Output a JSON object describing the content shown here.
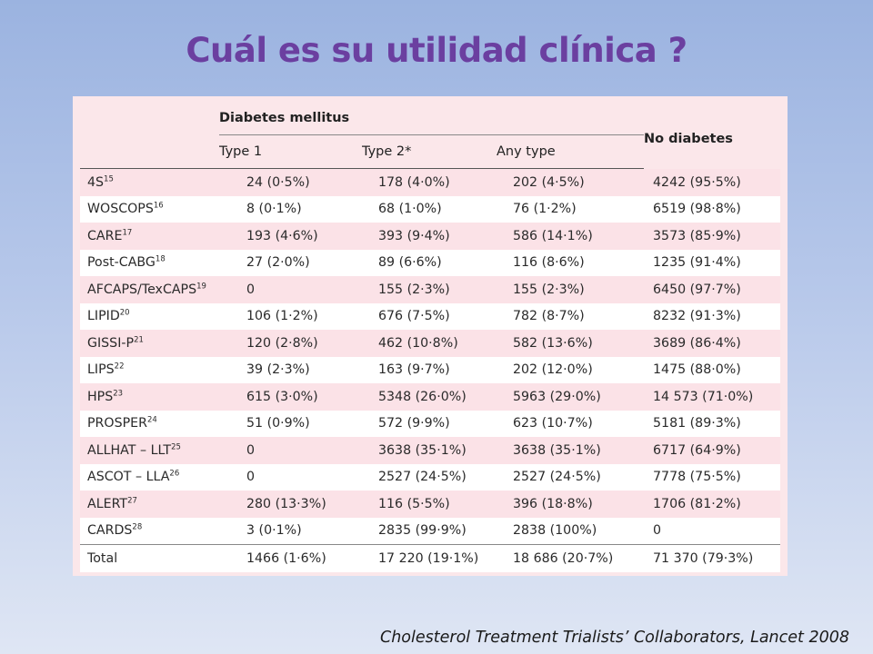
{
  "title": "Cuál es su utilidad clínica ?",
  "citation": "Cholesterol Treatment Trialists’ Collaborators, Lancet 2008",
  "table": {
    "group_header": "Diabetes mellitus",
    "no_diabetes_header": "No diabetes",
    "subheaders": [
      "Type 1",
      "Type 2*",
      "Any type"
    ],
    "rows": [
      {
        "study": "4S",
        "ref": "15",
        "type1": "24 (0·5%)",
        "type2": "178 (4·0%)",
        "any": "202 (4·5%)",
        "nodiab": "4242 (95·5%)"
      },
      {
        "study": "WOSCOPS",
        "ref": "16",
        "type1": "8 (0·1%)",
        "type2": "68 (1·0%)",
        "any": "76 (1·2%)",
        "nodiab": "6519 (98·8%)"
      },
      {
        "study": "CARE",
        "ref": "17",
        "type1": "193 (4·6%)",
        "type2": "393 (9·4%)",
        "any": "586 (14·1%)",
        "nodiab": "3573 (85·9%)"
      },
      {
        "study": "Post-CABG",
        "ref": "18",
        "type1": "27 (2·0%)",
        "type2": "89 (6·6%)",
        "any": "116 (8·6%)",
        "nodiab": "1235 (91·4%)"
      },
      {
        "study": "AFCAPS/TexCAPS",
        "ref": "19",
        "type1": "0",
        "type2": "155 (2·3%)",
        "any": "155 (2·3%)",
        "nodiab": "6450 (97·7%)"
      },
      {
        "study": "LIPID",
        "ref": "20",
        "type1": "106 (1·2%)",
        "type2": "676 (7·5%)",
        "any": "782 (8·7%)",
        "nodiab": "8232 (91·3%)"
      },
      {
        "study": "GISSI-P",
        "ref": "21",
        "type1": "120 (2·8%)",
        "type2": "462 (10·8%)",
        "any": "582 (13·6%)",
        "nodiab": "3689 (86·4%)"
      },
      {
        "study": "LIPS",
        "ref": "22",
        "type1": "39 (2·3%)",
        "type2": "163 (9·7%)",
        "any": "202 (12·0%)",
        "nodiab": "1475 (88·0%)"
      },
      {
        "study": "HPS",
        "ref": "23",
        "type1": "615 (3·0%)",
        "type2": "5348 (26·0%)",
        "any": "5963 (29·0%)",
        "nodiab": "14 573 (71·0%)"
      },
      {
        "study": "PROSPER",
        "ref": "24",
        "type1": "51 (0·9%)",
        "type2": "572 (9·9%)",
        "any": "623 (10·7%)",
        "nodiab": "5181 (89·3%)"
      },
      {
        "study": "ALLHAT – LLT",
        "ref": "25",
        "type1": "0",
        "type2": "3638 (35·1%)",
        "any": "3638 (35·1%)",
        "nodiab": "6717 (64·9%)"
      },
      {
        "study": "ASCOT – LLA",
        "ref": "26",
        "type1": "0",
        "type2": "2527 (24·5%)",
        "any": "2527 (24·5%)",
        "nodiab": "7778 (75·5%)"
      },
      {
        "study": "ALERT",
        "ref": "27",
        "type1": "280 (13·3%)",
        "type2": "116 (5·5%)",
        "any": "396 (18·8%)",
        "nodiab": "1706 (81·2%)"
      },
      {
        "study": "CARDS",
        "ref": "28",
        "type1": "3 (0·1%)",
        "type2": "2835 (99·9%)",
        "any": "2838 (100%)",
        "nodiab": "0"
      },
      {
        "study": "Total",
        "ref": "",
        "type1": "1466 (1·6%)",
        "type2": "17 220 (19·1%)",
        "any": "18 686 (20·7%)",
        "nodiab": "71 370 (79·3%)"
      }
    ]
  }
}
